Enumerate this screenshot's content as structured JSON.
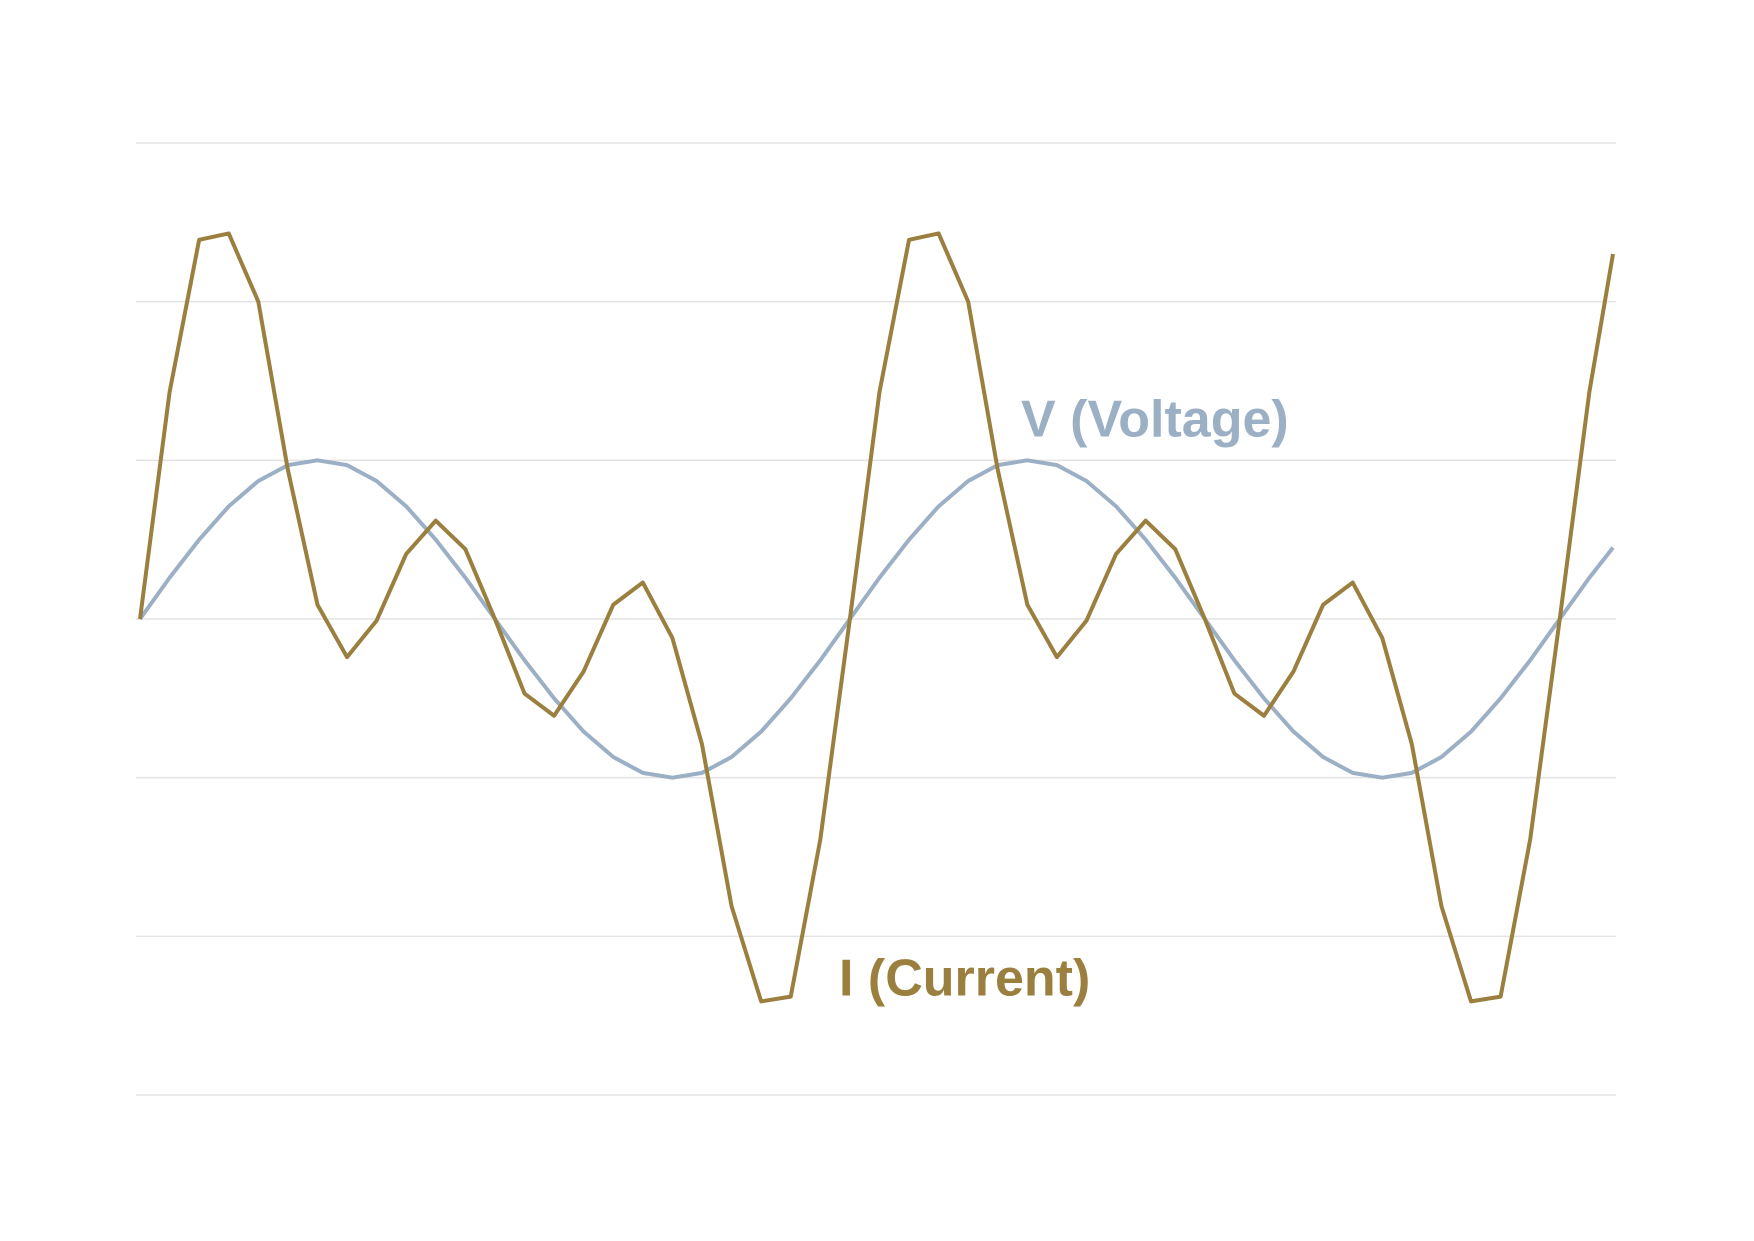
{
  "chart_data": {
    "type": "line",
    "x": [
      0,
      15,
      30,
      45,
      60,
      75,
      90,
      105,
      120,
      135,
      150,
      165,
      180,
      195,
      210,
      225,
      240,
      255,
      270,
      285,
      300,
      315,
      330,
      345,
      360,
      375,
      390,
      405,
      420,
      435,
      450,
      465,
      480,
      495,
      510,
      525,
      540,
      555,
      570,
      585,
      600,
      615,
      630,
      645,
      660,
      675,
      690,
      705,
      720,
      735,
      747
    ],
    "xlim": [
      0,
      747
    ],
    "ylim": [
      -3,
      3
    ],
    "yticks": [
      -3,
      -2,
      -1,
      0,
      1,
      2,
      3
    ],
    "grid": true,
    "series": [
      {
        "name": "V (Voltage)",
        "color": "#9bb0c4",
        "values": [
          0,
          0.26,
          0.5,
          0.71,
          0.87,
          0.97,
          1,
          0.97,
          0.87,
          0.71,
          0.5,
          0.26,
          0,
          -0.26,
          -0.5,
          -0.71,
          -0.87,
          -0.97,
          -1,
          -0.97,
          -0.87,
          -0.71,
          -0.5,
          -0.26,
          0,
          0.26,
          0.5,
          0.71,
          0.87,
          0.97,
          1,
          0.97,
          0.87,
          0.71,
          0.5,
          0.26,
          0,
          -0.26,
          -0.5,
          -0.71,
          -0.87,
          -0.97,
          -1,
          -0.97,
          -0.87,
          -0.71,
          -0.5,
          -0.26,
          0,
          0.26,
          0.45
        ]
      },
      {
        "name": "I (Current)",
        "color": "#9a7f3e",
        "values": [
          0,
          1.43,
          2.39,
          2.43,
          2.0,
          0.94,
          0.09,
          -0.24,
          -0.01,
          0.41,
          0.62,
          0.44,
          0,
          -0.47,
          -0.61,
          -0.33,
          0.09,
          0.23,
          -0.12,
          -0.79,
          -1.81,
          -2.41,
          -2.38,
          -1.39,
          0,
          1.43,
          2.39,
          2.43,
          2.0,
          0.94,
          0.09,
          -0.24,
          -0.01,
          0.41,
          0.62,
          0.44,
          0,
          -0.47,
          -0.61,
          -0.33,
          0.09,
          0.23,
          -0.12,
          -0.79,
          -1.81,
          -2.41,
          -2.38,
          -1.39,
          0,
          1.43,
          2.3
        ]
      }
    ]
  }
}
